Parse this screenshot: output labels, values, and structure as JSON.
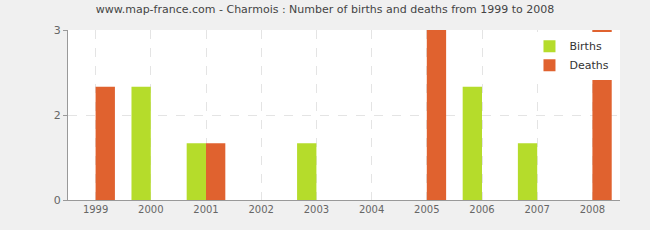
{
  "chart_data": {
    "type": "bar",
    "title": "www.map-france.com - Charmois : Number of births and deaths from 1999 to 2008",
    "categories": [
      "1999",
      "2000",
      "2001",
      "2002",
      "2003",
      "2004",
      "2005",
      "2006",
      "2007",
      "2008"
    ],
    "series": [
      {
        "name": "Births",
        "color": "#b5dc2b",
        "values": [
          0,
          2,
          1,
          0,
          1,
          0,
          0,
          2,
          1,
          0
        ]
      },
      {
        "name": "Deaths",
        "color": "#e0622f",
        "values": [
          2,
          0,
          1,
          0,
          0,
          0,
          3,
          0,
          0,
          3
        ]
      }
    ],
    "ylim": [
      0,
      3
    ],
    "yticks": [
      0,
      {
        "value": 1.5,
        "label": "2"
      },
      3
    ],
    "grid": true,
    "legend": "upper right"
  }
}
